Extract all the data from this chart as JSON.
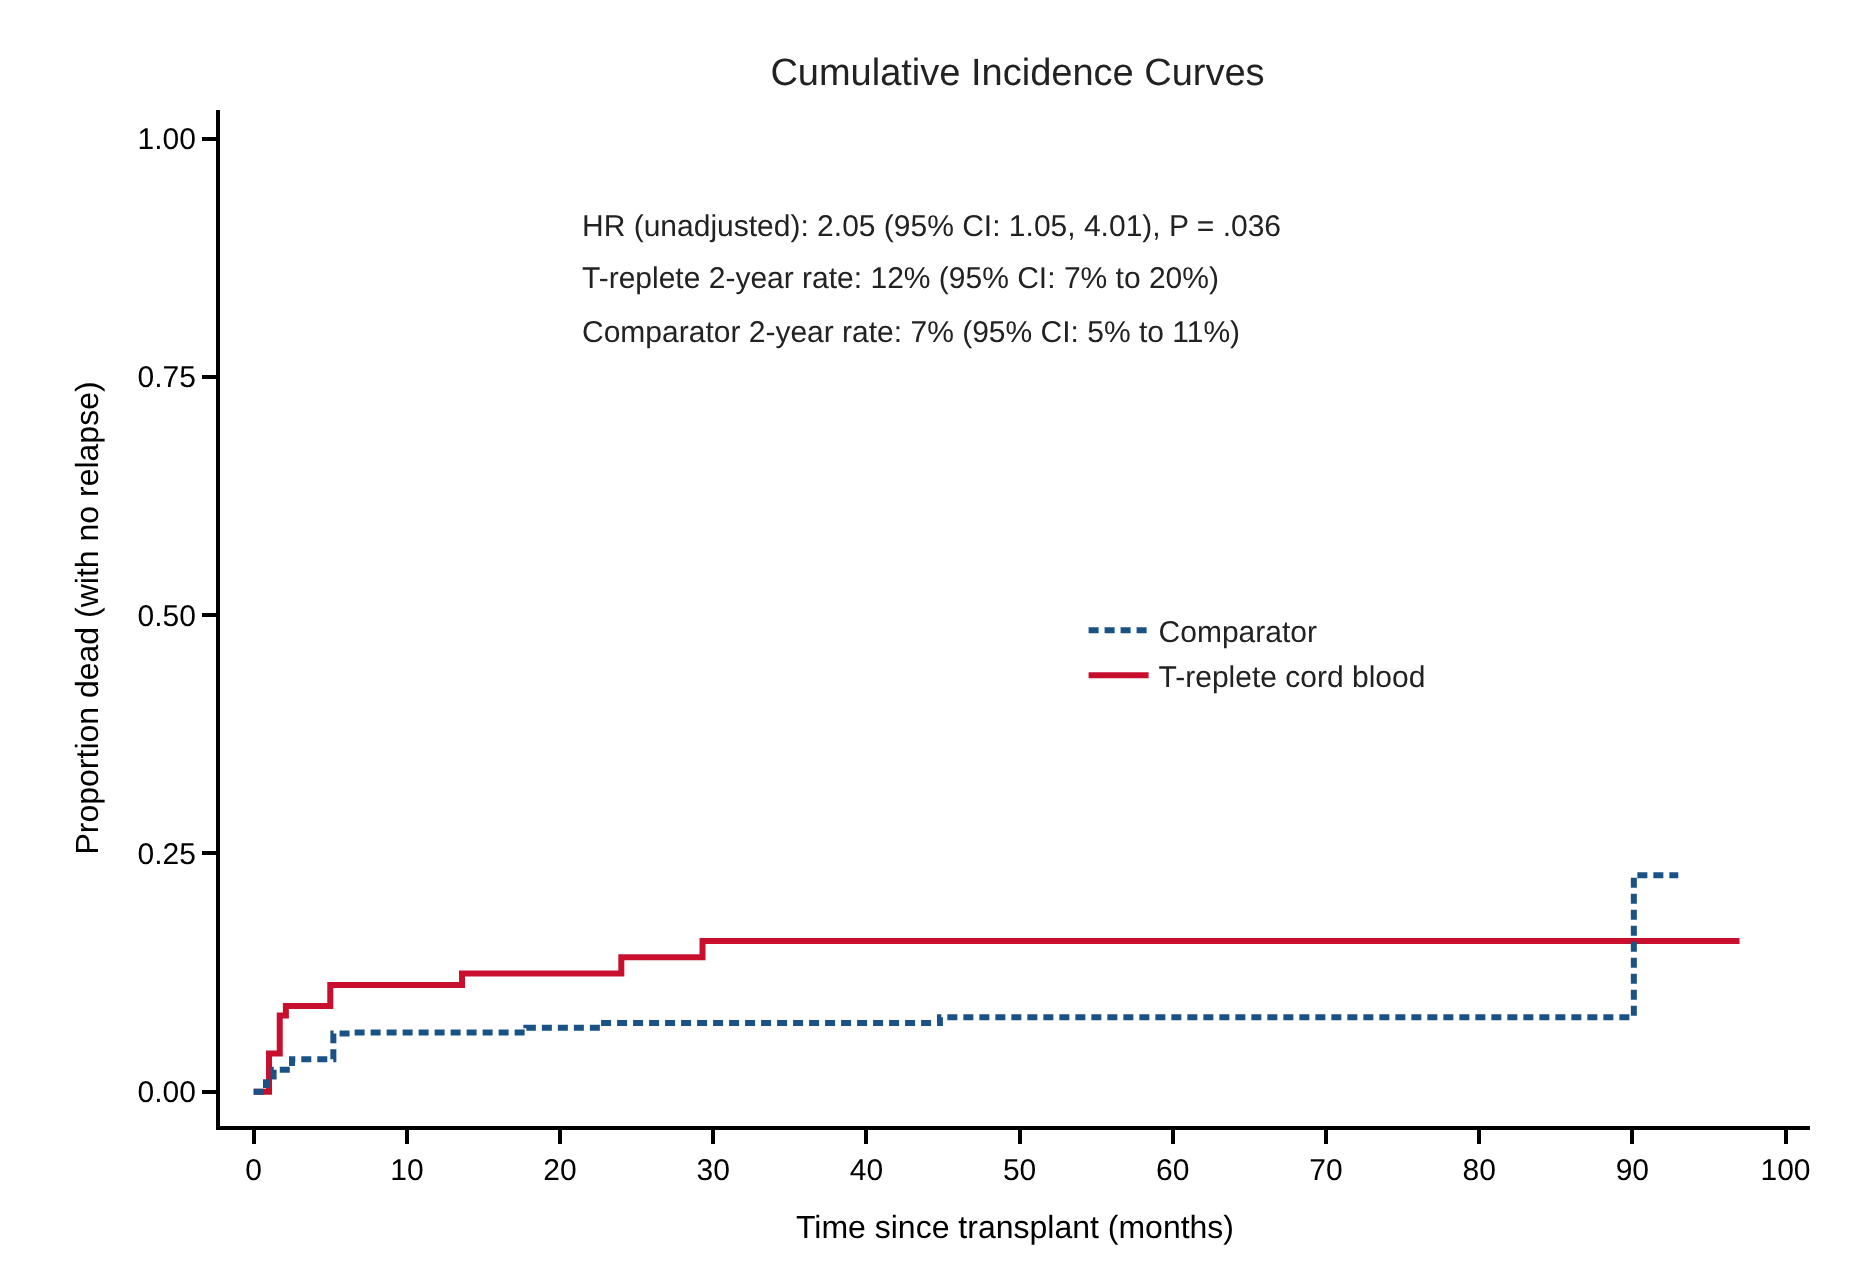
{
  "chart_data": {
    "type": "step",
    "title": "Cumulative Incidence Curves",
    "xlabel": "Time since transplant (months)",
    "ylabel": "Proportion dead (with no relapse)",
    "series": [
      {
        "name": "Comparator",
        "color": "#1a5285",
        "line_style": "dashed",
        "x": [
          0,
          0.8,
          1.3,
          2.5,
          5.2,
          6.5,
          17.8,
          22.6,
          44.8,
          90.1,
          93
        ],
        "values": [
          0,
          0.01,
          0.023,
          0.034,
          0.061,
          0.062,
          0.067,
          0.072,
          0.078,
          0.227,
          0.227
        ]
      },
      {
        "name": "T-replete cord blood",
        "color": "#c8102e",
        "line_style": "solid",
        "x": [
          0,
          0.8,
          1.0,
          1.7,
          2.1,
          5.0,
          13.6,
          24.0,
          29.3,
          97
        ],
        "values": [
          0,
          0,
          0.04,
          0.08,
          0.09,
          0.112,
          0.124,
          0.141,
          0.158,
          0.158
        ]
      }
    ],
    "xlim": [
      -2.2,
      101.6
    ],
    "xticks": [
      0,
      10,
      20,
      30,
      40,
      50,
      60,
      70,
      80,
      90,
      100
    ],
    "ylim": [
      -0.036,
      1.03
    ],
    "yticks": [
      {
        "value": 0,
        "label": "0.00"
      },
      {
        "value": 0.25,
        "label": "0.25"
      },
      {
        "value": 0.5,
        "label": "0.50"
      },
      {
        "value": 0.75,
        "label": "0.75"
      },
      {
        "value": 1,
        "label": "1.00"
      }
    ],
    "annotations": [
      "HR (unadjusted): 2.05 (95% CI: 1.05, 4.01), P = .036",
      "T-replete 2-year rate: 12% (95% CI: 7% to 20%)",
      "Comparator 2-year rate: 7% (95% CI: 5% to 11%)"
    ],
    "legend": "right"
  }
}
